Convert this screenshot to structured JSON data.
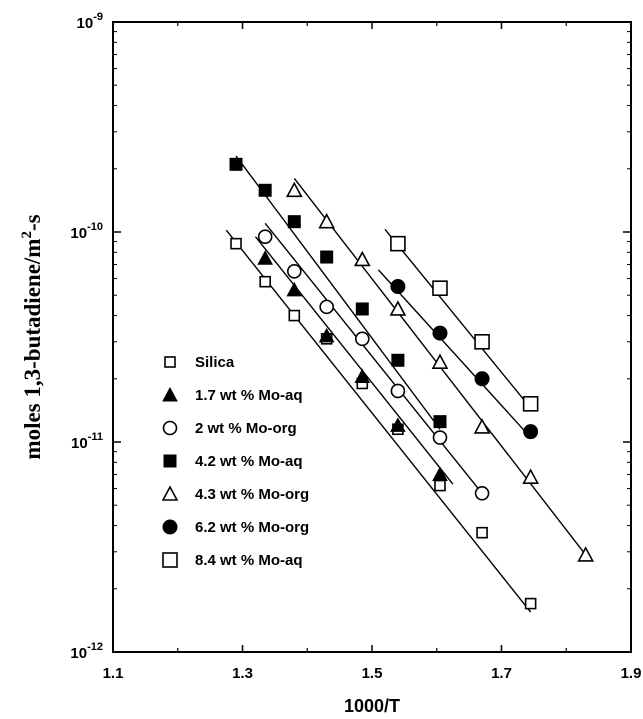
{
  "chart_data": {
    "type": "scatter",
    "title": "",
    "xlabel": "1000/T",
    "ylabel": "moles 1,3-butadiene/m^2-s",
    "xlim": [
      1.1,
      1.9
    ],
    "ylim": [
      1e-12,
      1e-09
    ],
    "y_scale": "log",
    "x_ticks": [
      "1.1",
      "1.3",
      "1.5",
      "1.7",
      "1.9"
    ],
    "y_ticks": [
      {
        "value": 1e-12,
        "base": "10",
        "exp": "-12"
      },
      {
        "value": 1e-11,
        "base": "10",
        "exp": "-11"
      },
      {
        "value": 1e-10,
        "base": "10",
        "exp": "-10"
      },
      {
        "value": 1e-09,
        "base": "10",
        "exp": "-9"
      }
    ],
    "grid": false,
    "legend_position": "lower-left",
    "series": [
      {
        "name": "Silica",
        "marker": "square-open-small",
        "x": [
          1.29,
          1.335,
          1.38,
          1.43,
          1.485,
          1.54,
          1.605,
          1.67,
          1.745
        ],
        "y": [
          8.8e-11,
          5.8e-11,
          4e-11,
          3.1e-11,
          1.9e-11,
          1.15e-11,
          6.2e-12,
          3.7e-12,
          1.7e-12
        ],
        "fit": {
          "x": [
            1.275,
            1.745
          ],
          "y": [
            1.02e-10,
            1.55e-12
          ]
        }
      },
      {
        "name": "1.7 wt % Mo-aq",
        "marker": "triangle-filled",
        "x": [
          1.335,
          1.38,
          1.43,
          1.485,
          1.54,
          1.605
        ],
        "y": [
          7.5e-11,
          5.3e-11,
          3.2e-11,
          2.05e-11,
          1.2e-11,
          7e-12
        ],
        "fit": {
          "x": [
            1.32,
            1.625
          ],
          "y": [
            9.5e-11,
            6.3e-12
          ]
        }
      },
      {
        "name": "2 wt % Mo-org",
        "marker": "circle-open",
        "x": [
          1.335,
          1.38,
          1.43,
          1.485,
          1.54,
          1.605,
          1.67
        ],
        "y": [
          9.5e-11,
          6.5e-11,
          4.4e-11,
          3.1e-11,
          1.75e-11,
          1.05e-11,
          5.7e-12
        ],
        "fit": {
          "x": [
            1.335,
            1.67
          ],
          "y": [
            1.1e-10,
            5.7e-12
          ]
        }
      },
      {
        "name": "4.2 wt % Mo-aq",
        "marker": "square-filled",
        "x": [
          1.29,
          1.335,
          1.38,
          1.43,
          1.485,
          1.54,
          1.605
        ],
        "y": [
          2.1e-10,
          1.58e-10,
          1.12e-10,
          7.6e-11,
          4.3e-11,
          2.45e-11,
          1.25e-11
        ],
        "fit": {
          "x": [
            1.29,
            1.605
          ],
          "y": [
            2.3e-10,
            1.15e-11
          ]
        }
      },
      {
        "name": "4.3 wt % Mo-org",
        "marker": "triangle-open",
        "x": [
          1.38,
          1.43,
          1.485,
          1.54,
          1.605,
          1.67,
          1.745,
          1.83
        ],
        "y": [
          1.58e-10,
          1.12e-10,
          7.4e-11,
          4.3e-11,
          2.4e-11,
          1.18e-11,
          6.8e-12,
          2.9e-12
        ],
        "fit": {
          "x": [
            1.38,
            1.83
          ],
          "y": [
            1.8e-10,
            2.9e-12
          ]
        }
      },
      {
        "name": "6.2 wt % Mo-org",
        "marker": "circle-filled",
        "x": [
          1.54,
          1.605,
          1.67,
          1.745
        ],
        "y": [
          5.5e-11,
          3.3e-11,
          2e-11,
          1.12e-11
        ],
        "fit": {
          "x": [
            1.51,
            1.745
          ],
          "y": [
            6.6e-11,
            1.05e-11
          ]
        }
      },
      {
        "name": "8.4 wt % Mo-aq",
        "marker": "square-open-large",
        "x": [
          1.54,
          1.605,
          1.67,
          1.745
        ],
        "y": [
          8.8e-11,
          5.4e-11,
          3e-11,
          1.52e-11
        ],
        "fit": {
          "x": [
            1.52,
            1.745
          ],
          "y": [
            1.03e-10,
            1.45e-11
          ]
        }
      }
    ]
  }
}
